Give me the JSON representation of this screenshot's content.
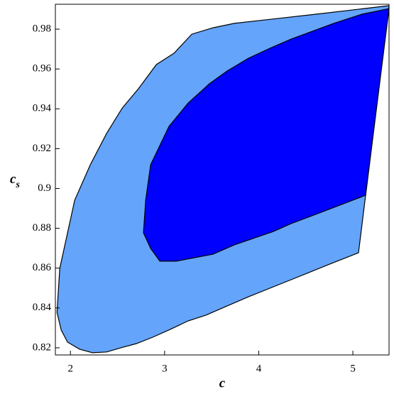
{
  "chart_data": {
    "type": "polygon",
    "x_label": "c",
    "y_label": "c",
    "y_label_sub": "s",
    "xlim": [
      1.84,
      5.384
    ],
    "ylim": [
      0.8164,
      0.9925
    ],
    "xticks": [
      2,
      3,
      4,
      5
    ],
    "yticks": [
      0.82,
      0.84,
      0.86,
      0.88,
      0.9,
      0.92,
      0.94,
      0.96,
      0.98
    ],
    "series": [
      {
        "color": "#64a4fa",
        "x": [
          5.384,
          4.607,
          3.741,
          3.515,
          3.289,
          3.1,
          2.912,
          2.723,
          2.55,
          2.384,
          2.211,
          2.045,
          1.887,
          1.857,
          1.902,
          1.97,
          2.098,
          2.234,
          2.384,
          2.535,
          2.701,
          2.874,
          3.063,
          3.251,
          3.439,
          3.65,
          3.891,
          4.118,
          4.344,
          4.57,
          4.796,
          5.06
        ],
        "values": [
          0.9918,
          0.9875,
          0.9829,
          0.9807,
          0.9775,
          0.9679,
          0.9622,
          0.9501,
          0.9404,
          0.9276,
          0.9119,
          0.8941,
          0.8599,
          0.8378,
          0.8289,
          0.8228,
          0.8193,
          0.8175,
          0.8179,
          0.82,
          0.8221,
          0.8253,
          0.8293,
          0.8335,
          0.8364,
          0.8407,
          0.8456,
          0.8499,
          0.8542,
          0.8585,
          0.8628,
          0.8677
        ]
      },
      {
        "color": "#0000ff",
        "x": [
          5.384,
          5.097,
          4.796,
          4.607,
          4.344,
          4.118,
          3.891,
          3.665,
          3.477,
          3.251,
          3.047,
          2.852,
          2.799,
          2.776,
          2.852,
          2.95,
          3.123,
          3.515,
          3.741,
          4.156,
          4.344,
          4.645,
          5.135
        ],
        "values": [
          0.9903,
          0.9875,
          0.9829,
          0.9796,
          0.975,
          0.9704,
          0.9654,
          0.959,
          0.9526,
          0.9429,
          0.9312,
          0.9119,
          0.8941,
          0.8777,
          0.8699,
          0.8635,
          0.8635,
          0.867,
          0.8717,
          0.8784,
          0.8824,
          0.8877,
          0.8966
        ]
      }
    ]
  }
}
